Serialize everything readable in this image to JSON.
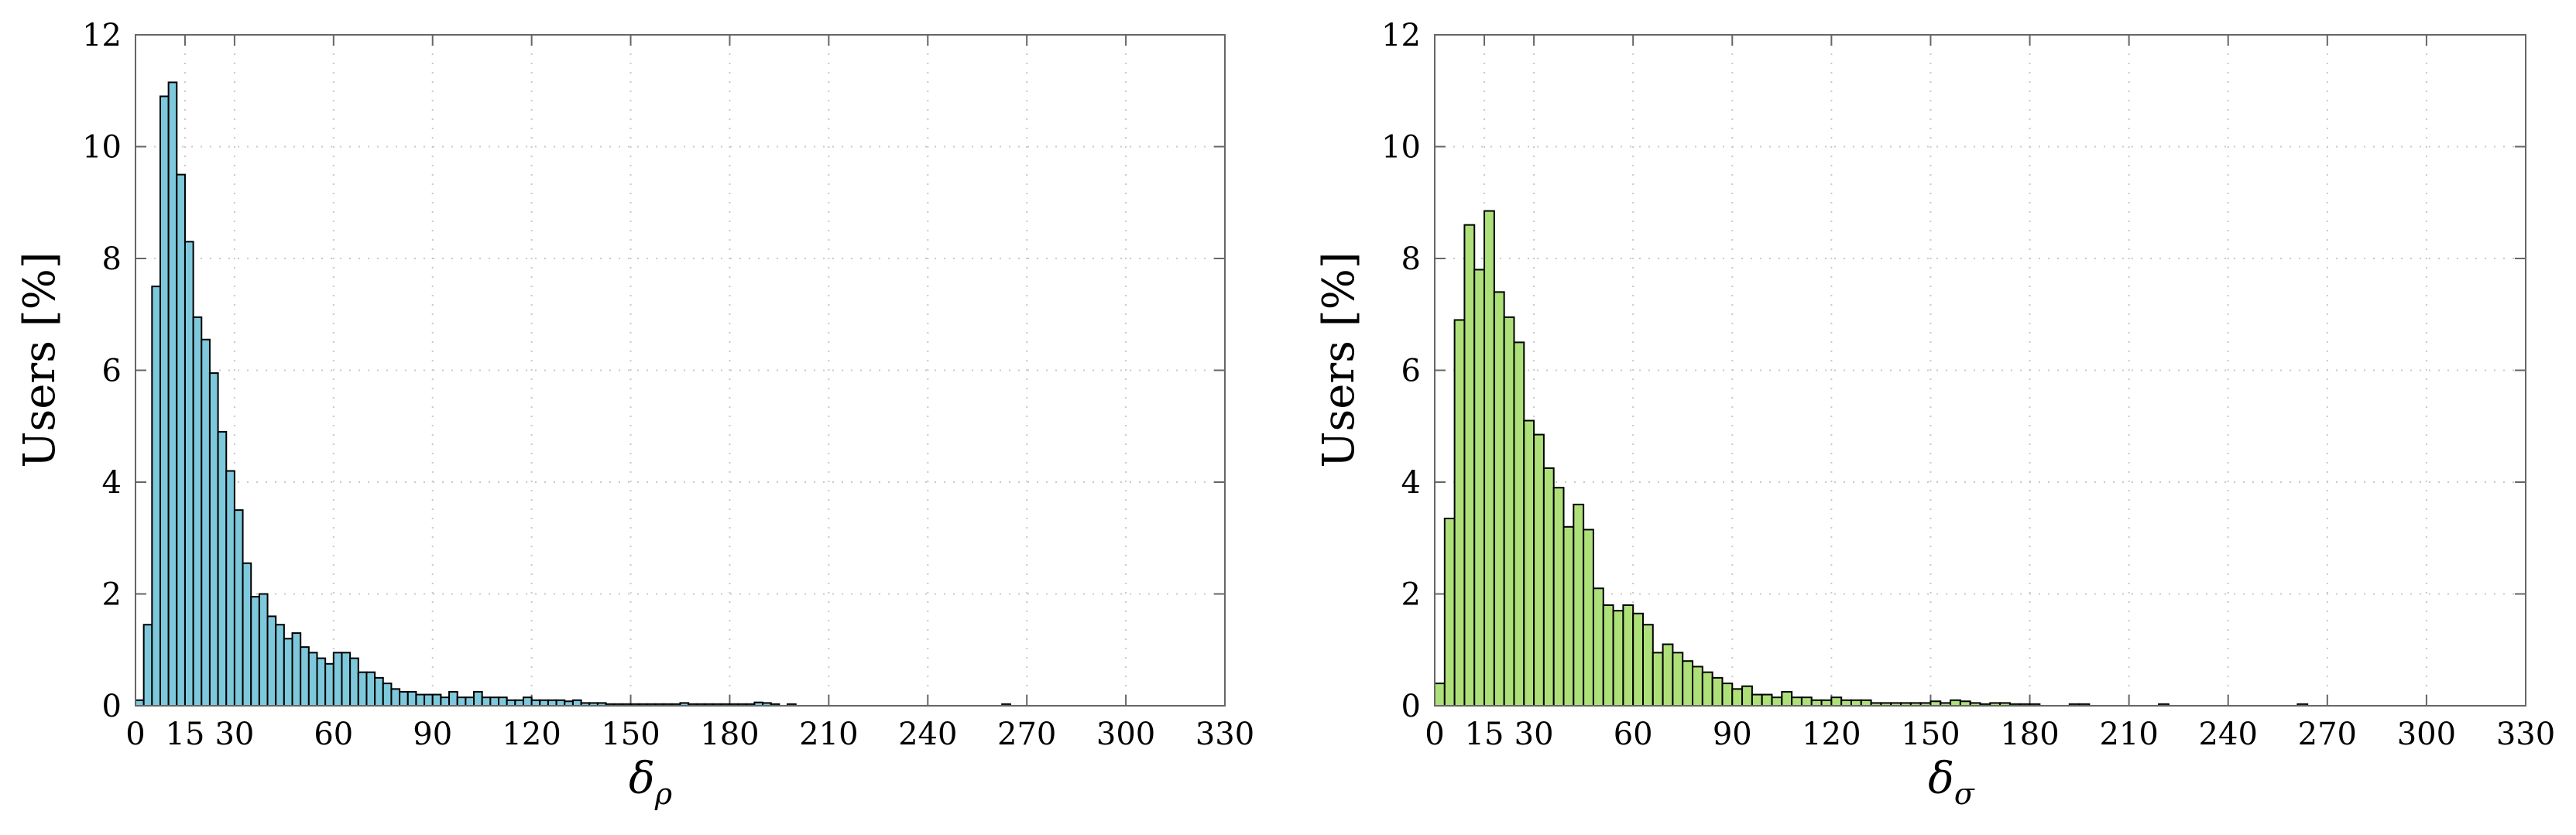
{
  "chart_data": [
    {
      "type": "bar",
      "ylabel": "Users [%]",
      "xlabel": "δ",
      "xlabel_sub": "ρ",
      "color": "#7ec8dc",
      "xlim": [
        0,
        330
      ],
      "ylim": [
        0,
        12
      ],
      "xticks": [
        "0",
        "15",
        "30",
        "60",
        "90",
        "120",
        "150",
        "180",
        "210",
        "240",
        "270",
        "300",
        "330"
      ],
      "yticks": [
        "0",
        "2",
        "4",
        "6",
        "8",
        "10",
        "12"
      ],
      "grid": true,
      "bin_width": 2.5,
      "x_start": 0,
      "values": [
        0.1,
        1.45,
        7.5,
        10.9,
        11.15,
        9.5,
        8.3,
        6.95,
        6.55,
        5.95,
        4.9,
        4.2,
        3.5,
        2.55,
        1.95,
        2.0,
        1.6,
        1.45,
        1.2,
        1.3,
        1.05,
        0.95,
        0.85,
        0.75,
        0.95,
        0.95,
        0.85,
        0.6,
        0.6,
        0.5,
        0.4,
        0.3,
        0.25,
        0.25,
        0.2,
        0.2,
        0.2,
        0.15,
        0.25,
        0.15,
        0.15,
        0.25,
        0.15,
        0.15,
        0.15,
        0.1,
        0.1,
        0.15,
        0.1,
        0.1,
        0.1,
        0.1,
        0.08,
        0.1,
        0.05,
        0.05,
        0.05,
        0.03,
        0.03,
        0.03,
        0.03,
        0.03,
        0.03,
        0.03,
        0.03,
        0.03,
        0.05,
        0.03,
        0.03,
        0.03,
        0.03,
        0.03,
        0.03,
        0.03,
        0.03,
        0.06,
        0.05,
        0.03,
        0,
        0.03,
        0,
        0,
        0,
        0,
        0,
        0,
        0,
        0,
        0,
        0,
        0,
        0,
        0,
        0,
        0,
        0,
        0,
        0,
        0,
        0,
        0,
        0,
        0,
        0,
        0,
        0.03
      ]
    },
    {
      "type": "bar",
      "ylabel": "Users [%]",
      "xlabel": "δ",
      "xlabel_sub": "σ",
      "color": "#aee07a",
      "xlim": [
        0,
        330
      ],
      "ylim": [
        0,
        12
      ],
      "xticks": [
        "0",
        "15",
        "30",
        "60",
        "90",
        "120",
        "150",
        "180",
        "210",
        "240",
        "270",
        "300",
        "330"
      ],
      "yticks": [
        "0",
        "2",
        "4",
        "6",
        "8",
        "10",
        "12"
      ],
      "grid": true,
      "bin_width": 3,
      "x_start": 0,
      "values": [
        0.4,
        3.35,
        6.9,
        8.6,
        7.8,
        8.85,
        7.4,
        6.95,
        6.5,
        5.1,
        4.85,
        4.25,
        3.9,
        3.2,
        3.6,
        3.15,
        2.1,
        1.8,
        1.7,
        1.8,
        1.65,
        1.45,
        0.95,
        1.1,
        0.95,
        0.8,
        0.7,
        0.6,
        0.5,
        0.4,
        0.3,
        0.35,
        0.2,
        0.2,
        0.15,
        0.25,
        0.15,
        0.15,
        0.1,
        0.1,
        0.15,
        0.1,
        0.1,
        0.1,
        0.05,
        0.05,
        0.05,
        0.05,
        0.05,
        0.05,
        0.08,
        0.05,
        0.1,
        0.08,
        0.05,
        0.03,
        0.05,
        0.05,
        0.03,
        0.03,
        0.03,
        0,
        0,
        0,
        0.03,
        0.03,
        0,
        0,
        0,
        0,
        0,
        0,
        0,
        0.03,
        0,
        0,
        0,
        0,
        0,
        0,
        0,
        0,
        0,
        0,
        0,
        0,
        0,
        0.03
      ]
    }
  ]
}
